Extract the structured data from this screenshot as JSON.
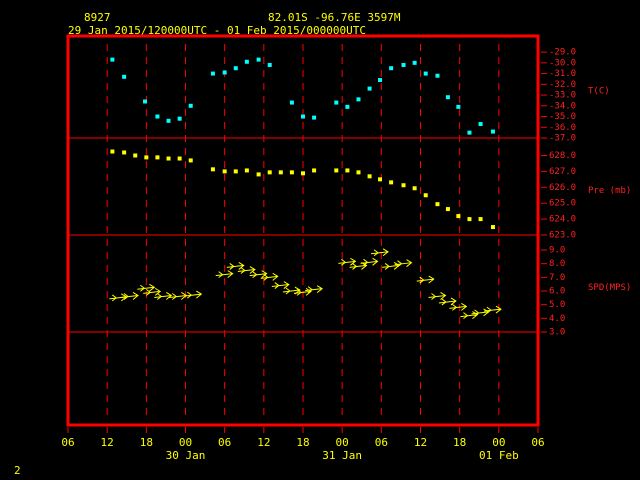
{
  "header": {
    "station": "8927",
    "location": "82.01S  -96.76E  3597M",
    "period": "29 Jan 2015/120000UTC - 01 Feb 2015/000000UTC"
  },
  "footer": "2",
  "x_axis": {
    "xlim": [
      0,
      72
    ],
    "xticks": [
      {
        "value": 0,
        "label": "06"
      },
      {
        "value": 6,
        "label": "12"
      },
      {
        "value": 12,
        "label": "18"
      },
      {
        "value": 18,
        "label": "00"
      },
      {
        "value": 24,
        "label": "06"
      },
      {
        "value": 30,
        "label": "12"
      },
      {
        "value": 36,
        "label": "18"
      },
      {
        "value": 42,
        "label": "00"
      },
      {
        "value": 48,
        "label": "06"
      },
      {
        "value": 54,
        "label": "12"
      },
      {
        "value": 60,
        "label": "18"
      },
      {
        "value": 66,
        "label": "00"
      },
      {
        "value": 72,
        "label": "06"
      }
    ],
    "date_labels": [
      {
        "value": 18,
        "label": "30 Jan"
      },
      {
        "value": 42,
        "label": "31 Jan"
      },
      {
        "value": 66,
        "label": "01 Feb"
      }
    ]
  },
  "chart_data": [
    {
      "type": "scatter",
      "label": "T(C)",
      "color": "#00ffff",
      "x": [
        6.8,
        8.6,
        11.8,
        13.7,
        15.4,
        17.1,
        18.8,
        22.2,
        24,
        25.7,
        27.4,
        29.2,
        30.9,
        34.3,
        36,
        37.7,
        41.1,
        42.8,
        44.5,
        46.2,
        47.8,
        49.5,
        51.4,
        53.1,
        54.8,
        56.6,
        58.2,
        59.8,
        61.5,
        63.2,
        65.1
      ],
      "values": [
        -29.7,
        -31.3,
        -33.6,
        -35.0,
        -35.4,
        -35.2,
        -34.0,
        -31.0,
        -30.9,
        -30.5,
        -29.9,
        -29.7,
        -30.2,
        -33.7,
        -35.0,
        -35.1,
        -33.7,
        -34.1,
        -33.4,
        -32.4,
        -31.6,
        -30.5,
        -30.2,
        -30.0,
        -31.0,
        -31.2,
        -33.2,
        -34.1,
        -36.5,
        -35.7,
        -36.4
      ],
      "ylim": [
        -37,
        -27.5
      ],
      "yticks": [
        {
          "value": -29,
          "label": "-29.0"
        },
        {
          "value": -30,
          "label": "-30.0"
        },
        {
          "value": -31,
          "label": "-31.0"
        },
        {
          "value": -32,
          "label": "-32.0"
        },
        {
          "value": -33,
          "label": "-33.0"
        },
        {
          "value": -34,
          "label": "-34.0"
        },
        {
          "value": -35,
          "label": "-35.0"
        },
        {
          "value": -36,
          "label": "-36.0"
        },
        {
          "value": -37,
          "label": "-37.0"
        }
      ]
    },
    {
      "type": "scatter",
      "label": "Pre (mb)",
      "color": "#ffff00",
      "x": [
        6.8,
        8.6,
        10.3,
        12,
        13.7,
        15.4,
        17.1,
        18.8,
        22.2,
        24,
        25.7,
        27.4,
        29.2,
        30.9,
        32.6,
        34.3,
        36,
        37.7,
        41.1,
        42.8,
        44.5,
        46.2,
        47.8,
        49.5,
        51.4,
        53.1,
        54.8,
        56.6,
        58.2,
        59.8,
        61.5,
        63.2,
        65.1
      ],
      "values": [
        628.25,
        628.19,
        628.0,
        627.88,
        627.88,
        627.81,
        627.81,
        627.69,
        627.13,
        627.0,
        627.0,
        627.06,
        626.81,
        626.94,
        626.94,
        626.94,
        626.88,
        627.06,
        627.06,
        627.06,
        626.94,
        626.69,
        626.5,
        626.31,
        626.13,
        625.94,
        625.5,
        624.94,
        624.63,
        624.19,
        624.0,
        624.0,
        623.5
      ],
      "ylim": [
        623,
        629.1
      ],
      "yticks": [
        {
          "value": 628,
          "label": "628.0"
        },
        {
          "value": 627,
          "label": "627.0"
        },
        {
          "value": 626,
          "label": "626.0"
        },
        {
          "value": 625,
          "label": "625.0"
        },
        {
          "value": 624,
          "label": "624.0"
        },
        {
          "value": 623,
          "label": "623.0"
        }
      ]
    },
    {
      "type": "wind",
      "label": "SPD(MPS)",
      "color": "#ffff00",
      "x": [
        7.7,
        9.5,
        12,
        12.9,
        14.6,
        16.9,
        19.2,
        24,
        25.7,
        27.4,
        29.2,
        30.9,
        32.6,
        34.3,
        36,
        37.7,
        42.8,
        44.5,
        46.2,
        47.8,
        49.5,
        51.4,
        54.8,
        56.6,
        58.2,
        59.8,
        61.5,
        63.2,
        65.1
      ],
      "values": [
        5.5,
        5.6,
        6.2,
        5.9,
        5.6,
        5.6,
        5.7,
        7.2,
        7.8,
        7.5,
        7.2,
        7.0,
        6.4,
        6.0,
        5.9,
        6.1,
        8.1,
        7.8,
        8.1,
        8.8,
        7.8,
        8.0,
        6.8,
        5.6,
        5.2,
        4.8,
        4.2,
        4.4,
        4.6
      ],
      "ylim": [
        3,
        10.1
      ],
      "yticks": [
        {
          "value": 9,
          "label": "9.0"
        },
        {
          "value": 8,
          "label": "8.0"
        },
        {
          "value": 7,
          "label": "7.0"
        },
        {
          "value": 6,
          "label": "6.0"
        },
        {
          "value": 5,
          "label": "5.0"
        },
        {
          "value": 4,
          "label": "4.0"
        },
        {
          "value": 3,
          "label": "3.0"
        }
      ]
    }
  ]
}
